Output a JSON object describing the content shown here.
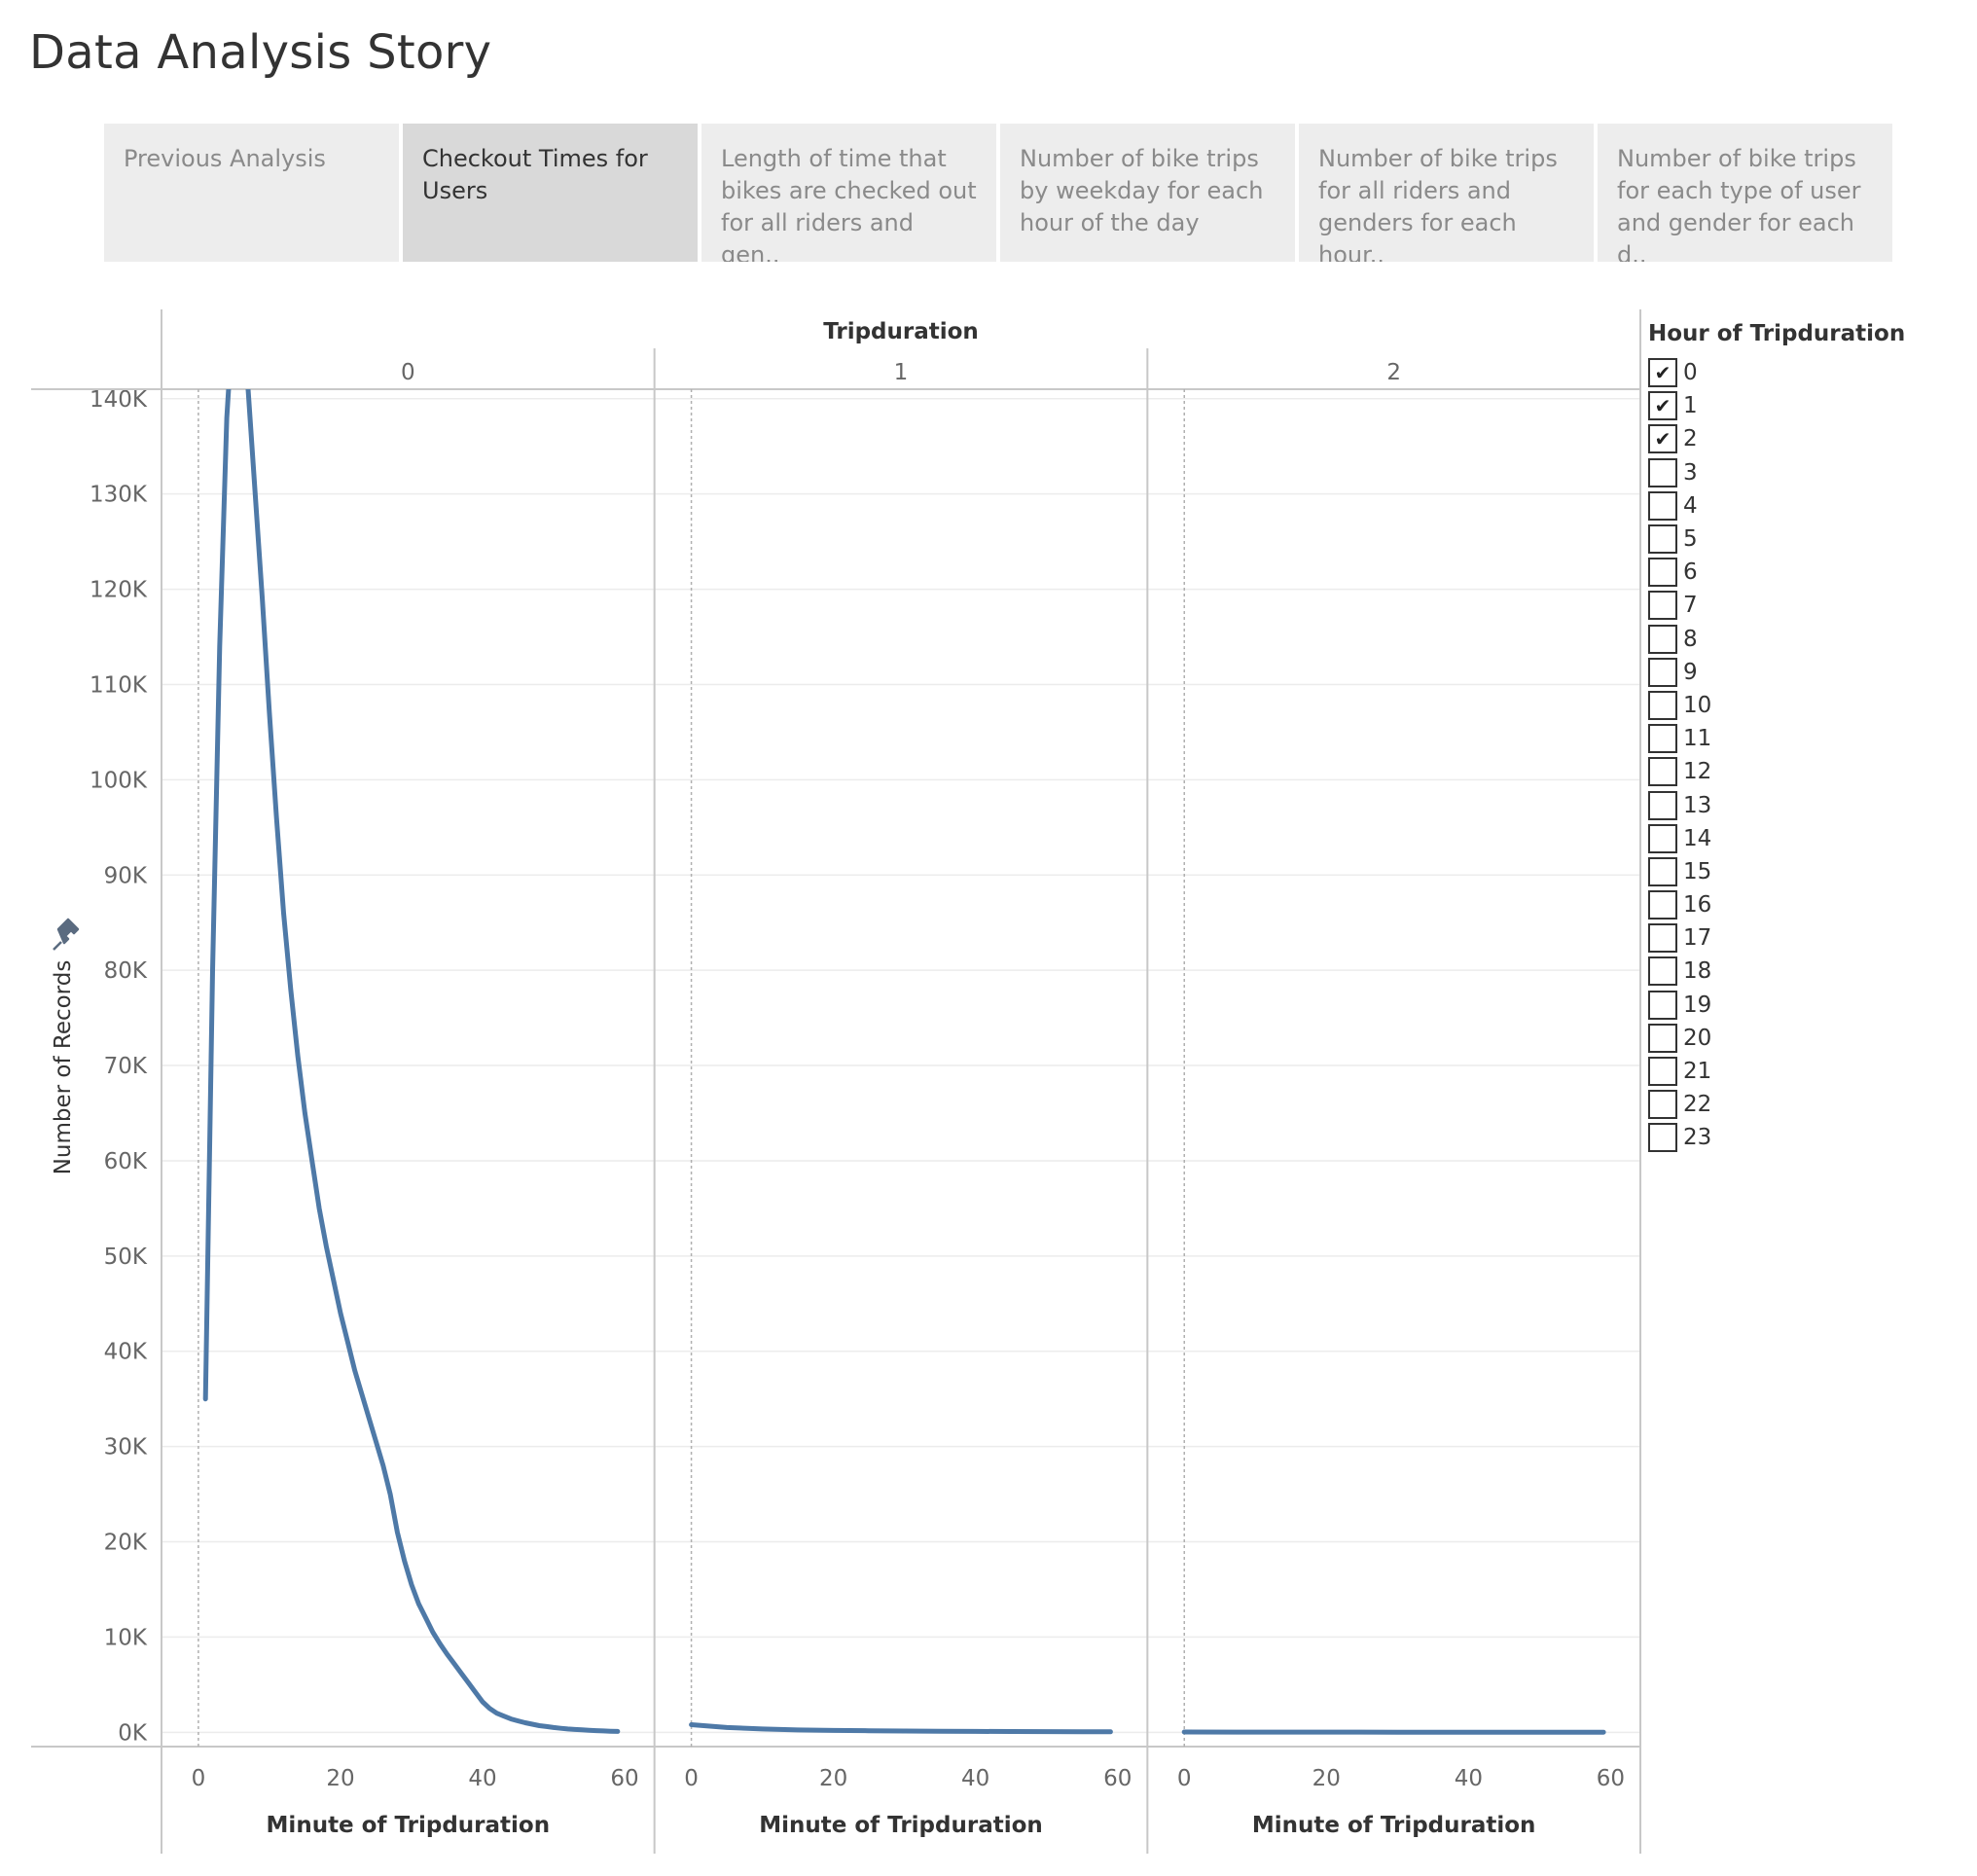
{
  "page": {
    "title": "Data Analysis Story"
  },
  "tabs": [
    {
      "label": "Previous Analysis",
      "active": false
    },
    {
      "label": "Checkout Times for Users",
      "active": true
    },
    {
      "label": "Length of time that bikes are checked out for all riders and gen..",
      "active": false
    },
    {
      "label": "Number of bike trips by weekday for each hour of the day",
      "active": false
    },
    {
      "label": "Number of bike trips for all riders and genders for each hour..",
      "active": false
    },
    {
      "label": "Number of bike trips for each type of user and gender for each d..",
      "active": false
    }
  ],
  "legend": {
    "title": "Hour of Tripduration",
    "items": [
      {
        "label": "0",
        "checked": true
      },
      {
        "label": "1",
        "checked": true
      },
      {
        "label": "2",
        "checked": true
      },
      {
        "label": "3",
        "checked": false
      },
      {
        "label": "4",
        "checked": false
      },
      {
        "label": "5",
        "checked": false
      },
      {
        "label": "6",
        "checked": false
      },
      {
        "label": "7",
        "checked": false
      },
      {
        "label": "8",
        "checked": false
      },
      {
        "label": "9",
        "checked": false
      },
      {
        "label": "10",
        "checked": false
      },
      {
        "label": "11",
        "checked": false
      },
      {
        "label": "12",
        "checked": false
      },
      {
        "label": "13",
        "checked": false
      },
      {
        "label": "14",
        "checked": false
      },
      {
        "label": "15",
        "checked": false
      },
      {
        "label": "16",
        "checked": false
      },
      {
        "label": "17",
        "checked": false
      },
      {
        "label": "18",
        "checked": false
      },
      {
        "label": "19",
        "checked": false
      },
      {
        "label": "20",
        "checked": false
      },
      {
        "label": "21",
        "checked": false
      },
      {
        "label": "22",
        "checked": false
      },
      {
        "label": "23",
        "checked": false
      }
    ]
  },
  "colors": {
    "line": "#4e79a7",
    "grid": "#ececec",
    "axis": "#c8c8c8",
    "text": "#333333",
    "muted": "#666666"
  },
  "chart_data": {
    "type": "line",
    "column_header": "Tripduration",
    "panels": [
      "0",
      "1",
      "2"
    ],
    "xlabel": "Minute of Tripduration",
    "ylabel": "Number of Records",
    "xlim": [
      -3,
      62
    ],
    "ylim": [
      -1500,
      141000
    ],
    "xticks": [
      0,
      20,
      40,
      60
    ],
    "yticks": [
      {
        "value": 0,
        "label": "0K"
      },
      {
        "value": 10000,
        "label": "10K"
      },
      {
        "value": 20000,
        "label": "20K"
      },
      {
        "value": 30000,
        "label": "30K"
      },
      {
        "value": 40000,
        "label": "40K"
      },
      {
        "value": 50000,
        "label": "50K"
      },
      {
        "value": 60000,
        "label": "60K"
      },
      {
        "value": 70000,
        "label": "70K"
      },
      {
        "value": 80000,
        "label": "80K"
      },
      {
        "value": 90000,
        "label": "90K"
      },
      {
        "value": 100000,
        "label": "100K"
      },
      {
        "value": 110000,
        "label": "110K"
      },
      {
        "value": 120000,
        "label": "120K"
      },
      {
        "value": 130000,
        "label": "130K"
      },
      {
        "value": 140000,
        "label": "140K"
      }
    ],
    "grid": true,
    "legend_placement": "right",
    "series": [
      {
        "panel": "0",
        "x": [
          1,
          2,
          3,
          4,
          5,
          6,
          7,
          8,
          9,
          10,
          11,
          12,
          13,
          14,
          15,
          16,
          17,
          18,
          19,
          20,
          21,
          22,
          23,
          24,
          25,
          26,
          27,
          28,
          29,
          30,
          31,
          32,
          33,
          34,
          35,
          36,
          37,
          38,
          39,
          40,
          41,
          42,
          43,
          44,
          45,
          46,
          47,
          48,
          49,
          50,
          51,
          52,
          53,
          54,
          55,
          56,
          57,
          58,
          59
        ],
        "values": [
          35000,
          80000,
          114000,
          138000,
          150000,
          148000,
          141000,
          130000,
          119000,
          107000,
          96000,
          86000,
          78000,
          71000,
          65000,
          60000,
          55000,
          51000,
          47500,
          44000,
          41000,
          38000,
          35500,
          33000,
          30500,
          28000,
          25000,
          21000,
          18000,
          15500,
          13500,
          12000,
          10500,
          9300,
          8200,
          7200,
          6200,
          5200,
          4200,
          3200,
          2500,
          2000,
          1700,
          1400,
          1200,
          1000,
          850,
          700,
          600,
          500,
          420,
          350,
          300,
          260,
          220,
          180,
          140,
          110,
          90
        ]
      },
      {
        "panel": "1",
        "x": [
          0,
          5,
          10,
          15,
          20,
          25,
          30,
          35,
          40,
          45,
          50,
          55,
          59
        ],
        "values": [
          800,
          500,
          350,
          250,
          200,
          160,
          130,
          110,
          90,
          80,
          70,
          60,
          50
        ]
      },
      {
        "panel": "2",
        "x": [
          0,
          10,
          20,
          30,
          40,
          50,
          59
        ],
        "values": [
          30,
          25,
          20,
          15,
          12,
          10,
          8
        ]
      }
    ]
  }
}
